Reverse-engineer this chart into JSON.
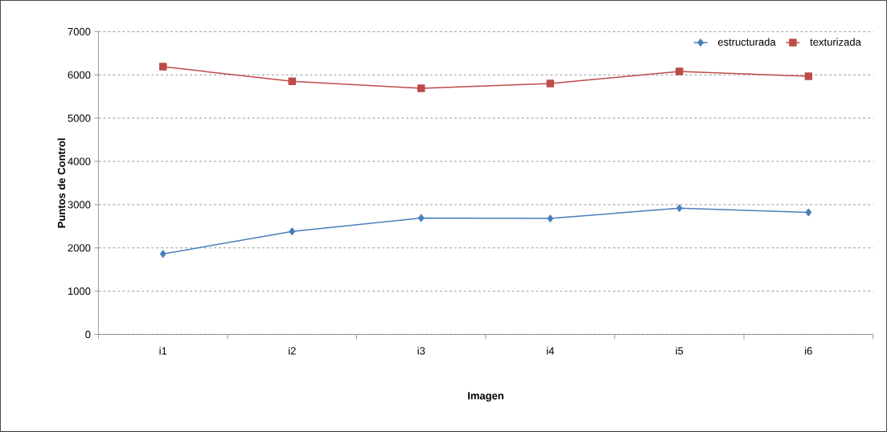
{
  "chart_data": {
    "type": "line",
    "xlabel": "Imagen",
    "ylabel": "Puntos de Control",
    "categories": [
      "i1",
      "i2",
      "i3",
      "i4",
      "i5",
      "i6"
    ],
    "series": [
      {
        "name": "estructurada",
        "color": "#4a7ebb",
        "marker": "diamond",
        "values": [
          1860,
          2380,
          2690,
          2680,
          2920,
          2820
        ]
      },
      {
        "name": "texturizada",
        "color": "#be4b48",
        "marker": "square",
        "values": [
          6190,
          5850,
          5690,
          5800,
          6080,
          5970
        ]
      }
    ],
    "ylim": [
      0,
      7000
    ],
    "yticks": [
      0,
      1000,
      2000,
      3000,
      4000,
      5000,
      6000,
      7000
    ],
    "grid": "y",
    "legend": "top right",
    "line_style": "solid"
  }
}
